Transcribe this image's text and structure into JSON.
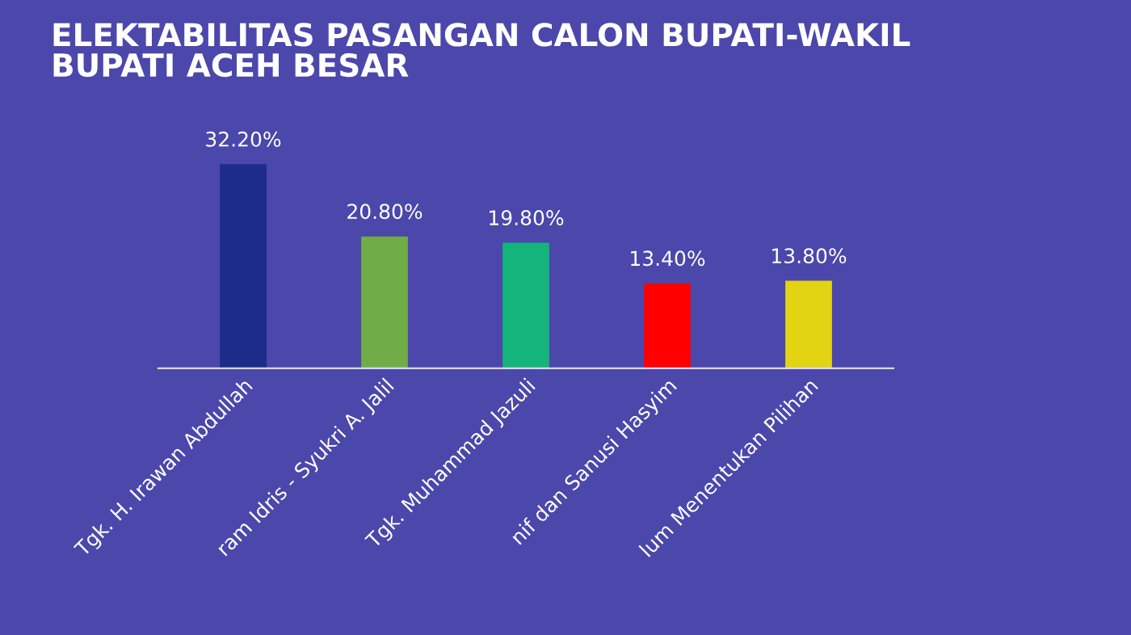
{
  "chart_data": {
    "type": "bar",
    "title": "ELEKTABILITAS PASANGAN CALON BUPATI-WAKIL\nBUPATI ACEH BESAR",
    "categories": [
      "Tgk. H. Irawan Abdullah",
      "ram Idris - Syukri A. Jalil",
      "Tgk. Muhammad Jazuli",
      "nif dan Sanusi Hasyim",
      "lum Menentukan Pilihan"
    ],
    "values": [
      32.2,
      20.8,
      19.8,
      13.4,
      13.8
    ],
    "colors": [
      "#1c2c88",
      "#70ad47",
      "#14b47a",
      "#ff0000",
      "#e2d412"
    ],
    "value_labels": [
      "32.20%",
      "20.80%",
      "19.80%",
      "13.40%",
      "13.80%"
    ],
    "grid": false,
    "legend": false
  }
}
